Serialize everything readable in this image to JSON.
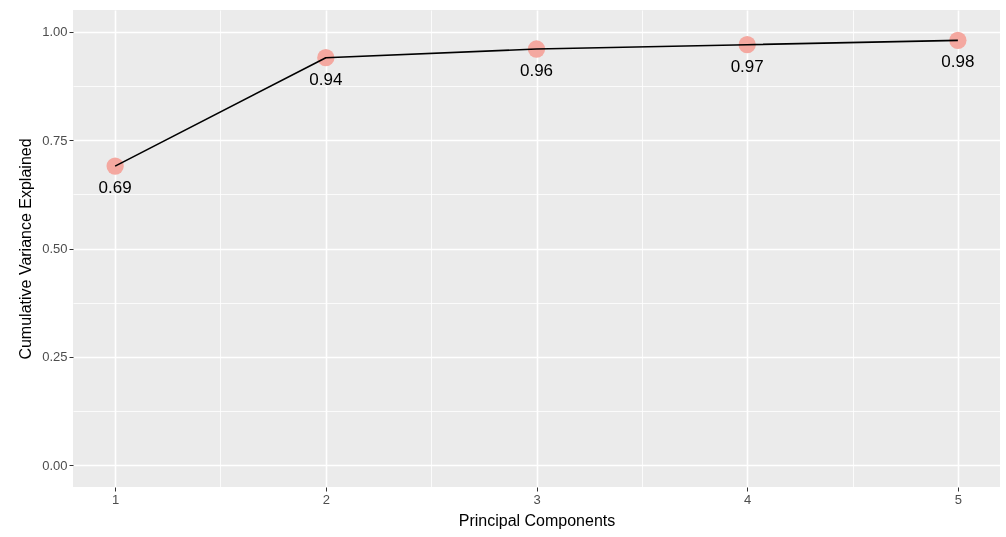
{
  "chart_data": {
    "type": "scatter",
    "xlabel": "Principal Components",
    "ylabel": "Cumulative Variance Explained",
    "x": [
      1,
      2,
      3,
      4,
      5
    ],
    "series": [
      {
        "color": "#f4a8a0",
        "values": [
          0.69,
          0.94,
          0.96,
          0.97,
          0.98
        ],
        "value_labels": [
          "0.69",
          "0.94",
          "0.96",
          "0.97",
          "0.98"
        ]
      },
      {
        "type": "line",
        "color": "#000000",
        "values": [
          0.69,
          0.94,
          0.96,
          0.97,
          0.98
        ]
      }
    ],
    "xlim": [
      0.8,
      5.2
    ],
    "xticks": [
      1,
      2,
      3,
      4,
      5
    ],
    "ylim": [
      -0.05,
      1.05
    ],
    "yticks": [
      {
        "value": 0,
        "label": "0.00"
      },
      {
        "value": 0.25,
        "label": "0.25"
      },
      {
        "value": 0.5,
        "label": "0.50"
      },
      {
        "value": 0.75,
        "label": "0.75"
      },
      {
        "value": 1,
        "label": "1.00"
      }
    ],
    "grid": true
  }
}
